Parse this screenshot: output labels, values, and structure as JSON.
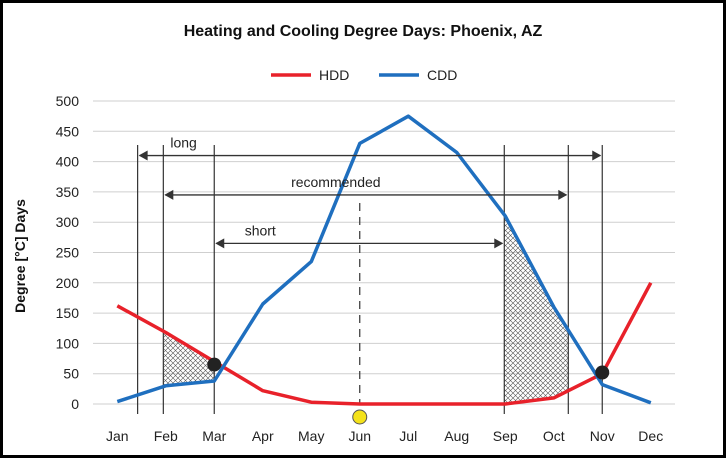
{
  "chart_data": {
    "type": "line",
    "title": "Heating and Cooling Degree Days: Phoenix, AZ",
    "ylabel": "Degree [°C] Days",
    "xlabel": "",
    "categories": [
      "Jan",
      "Feb",
      "Mar",
      "Apr",
      "May",
      "Jun",
      "Jul",
      "Aug",
      "Sep",
      "Oct",
      "Nov",
      "Dec"
    ],
    "ylim": [
      0,
      500
    ],
    "yticks": [
      0,
      50,
      100,
      150,
      200,
      250,
      300,
      350,
      400,
      450,
      500
    ],
    "grid": true,
    "legend_position": "top",
    "series": [
      {
        "name": "HDD",
        "color": "#e8212a",
        "values": [
          162,
          118,
          70,
          22,
          3,
          0,
          0,
          0,
          0,
          10,
          50,
          200
        ]
      },
      {
        "name": "CDD",
        "color": "#1f6fbf",
        "values": [
          4,
          30,
          38,
          165,
          235,
          430,
          475,
          415,
          310,
          160,
          32,
          2
        ]
      }
    ],
    "crossover_points": [
      {
        "month": 2.0,
        "value": 65
      },
      {
        "month": 10.0,
        "value": 52
      }
    ],
    "midpoint_marker": {
      "month": 5.0,
      "color": "#f4e21a"
    },
    "verticals": [
      0.42,
      0.95,
      2.0,
      5.0,
      7.98,
      9.3,
      10.0
    ],
    "hatch_regions": [
      {
        "x_start": 0.95,
        "x_end": 2.0
      },
      {
        "x_start": 7.98,
        "x_end": 9.3
      }
    ],
    "annotations": [
      {
        "label": "long",
        "x_start": 0.42,
        "x_end": 10.0,
        "y": 410
      },
      {
        "label": "recommended",
        "x_start": 0.95,
        "x_end": 9.3,
        "y": 345
      },
      {
        "label": "short",
        "x_start": 2.0,
        "x_end": 7.98,
        "y": 265
      }
    ]
  }
}
